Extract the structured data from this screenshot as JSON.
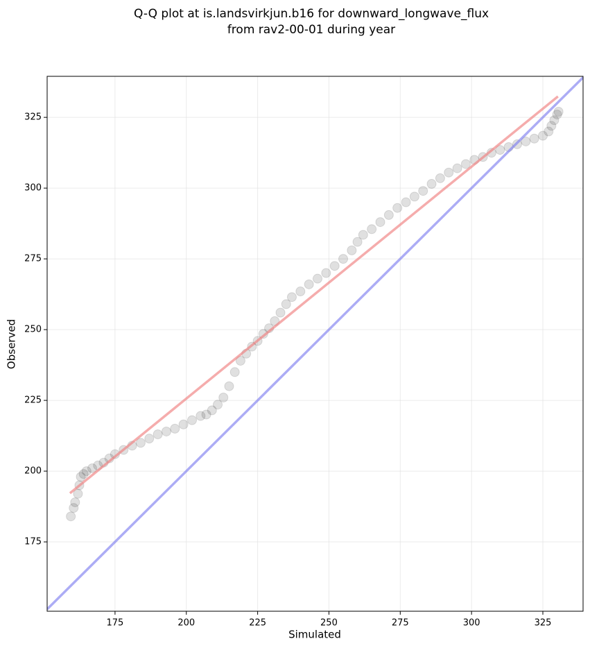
{
  "chart_data": {
    "type": "scatter",
    "title": [
      "Q-Q plot at is.landsvirkjun.b16 for downward_longwave_flux",
      "from rav2-00-01 during year"
    ],
    "x_label": "Simulated",
    "y_label": "Observed",
    "xlim": [
      151.2,
      339.1
    ],
    "ylim": [
      150.5,
      339.5
    ],
    "xticks": [
      175,
      200,
      225,
      250,
      275,
      300,
      325
    ],
    "yticks": [
      175,
      200,
      225,
      250,
      275,
      300,
      325
    ],
    "grid": true,
    "series": [
      {
        "color": "#000000",
        "x": [
          159.5,
          160.5,
          161,
          162,
          162.5,
          163,
          164,
          165,
          167,
          169,
          171,
          173,
          175,
          178,
          181,
          184,
          187,
          190,
          193,
          196,
          199,
          202,
          205,
          207,
          209,
          211,
          213,
          215,
          217,
          219,
          221,
          223,
          225,
          227,
          229,
          231,
          233,
          235,
          237,
          240,
          243,
          246,
          249,
          252,
          255,
          258,
          260,
          262,
          265,
          268,
          271,
          274,
          277,
          280,
          283,
          286,
          289,
          292,
          295,
          298,
          301,
          304,
          307,
          310,
          313,
          316,
          319,
          322,
          325,
          327,
          328,
          329,
          330,
          330.5
        ],
        "values": [
          184,
          187,
          189,
          192,
          195,
          198,
          199,
          200,
          201,
          202,
          203,
          204.5,
          206,
          207.5,
          209,
          210,
          211.5,
          213,
          214,
          215,
          216.5,
          218,
          219.5,
          220,
          221.5,
          223.5,
          226,
          230,
          235,
          239,
          241.5,
          244,
          246,
          248.5,
          250.5,
          253,
          256,
          259,
          261.5,
          263.5,
          266,
          268,
          270,
          272.5,
          275,
          278,
          281,
          283.5,
          285.5,
          288,
          290.5,
          293,
          295,
          297,
          299,
          301.5,
          303.5,
          305.5,
          307,
          308.5,
          310,
          311,
          312.5,
          313.5,
          314.5,
          315.5,
          316.5,
          317.5,
          318.5,
          320,
          322,
          324,
          326,
          327
        ]
      }
    ],
    "lines": [
      {
        "color": "#f08080",
        "x": [
          159.2,
          330.3
        ],
        "values": [
          192.2,
          332.4
        ]
      },
      {
        "color": "#8080f0",
        "x": [
          151.2,
          339.1
        ],
        "values": [
          151.2,
          339.1
        ]
      }
    ]
  }
}
